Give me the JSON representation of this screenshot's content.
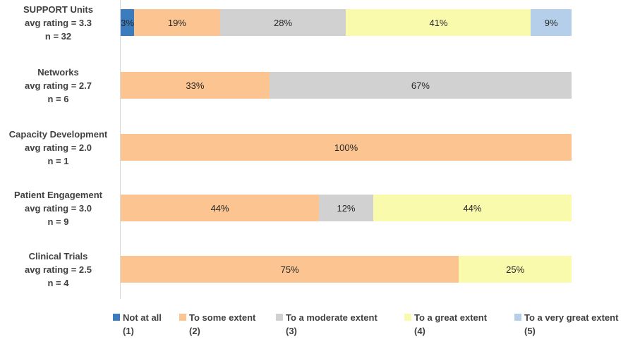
{
  "chart_data": {
    "type": "bar",
    "orientation": "horizontal",
    "stacked": true,
    "unit": "%",
    "xlim": [
      0,
      100
    ],
    "grid": false,
    "legend_position": "bottom",
    "series": [
      {
        "name": "Not at all",
        "scale": "(1)",
        "color": "#3A7CBE"
      },
      {
        "name": "To some extent",
        "scale": "(2)",
        "color": "#FBC491"
      },
      {
        "name": "To a moderate extent",
        "scale": "(3)",
        "color": "#D1D1D1"
      },
      {
        "name": "To a great extent",
        "scale": "(4)",
        "color": "#FAFAAD"
      },
      {
        "name": "To a very great extent",
        "scale": "(5)",
        "color": "#B5CFEA"
      }
    ],
    "rows": [
      {
        "label_lines": [
          "SUPPORT Units",
          "avg rating = 3.3",
          "n = 32"
        ],
        "segments": [
          {
            "series": 0,
            "value": 3,
            "label": "3%"
          },
          {
            "series": 1,
            "value": 19,
            "label": "19%"
          },
          {
            "series": 2,
            "value": 28,
            "label": "28%"
          },
          {
            "series": 3,
            "value": 41,
            "label": "41%"
          },
          {
            "series": 4,
            "value": 9,
            "label": "9%"
          }
        ]
      },
      {
        "label_lines": [
          "Networks",
          "avg rating = 2.7",
          "n = 6"
        ],
        "segments": [
          {
            "series": 1,
            "value": 33,
            "label": "33%"
          },
          {
            "series": 2,
            "value": 67,
            "label": "67%"
          }
        ]
      },
      {
        "label_lines": [
          "Capacity Development",
          "avg rating = 2.0",
          "n = 1"
        ],
        "segments": [
          {
            "series": 1,
            "value": 100,
            "label": "100%"
          }
        ]
      },
      {
        "label_lines": [
          "Patient Engagement",
          "avg rating = 3.0",
          "n = 9"
        ],
        "segments": [
          {
            "series": 1,
            "value": 44,
            "label": "44%"
          },
          {
            "series": 2,
            "value": 12,
            "label": "12%"
          },
          {
            "series": 3,
            "value": 44,
            "label": "44%"
          }
        ]
      },
      {
        "label_lines": [
          "Clinical Trials",
          "avg rating = 2.5",
          "n = 4"
        ],
        "segments": [
          {
            "series": 1,
            "value": 75,
            "label": "75%"
          },
          {
            "series": 3,
            "value": 25,
            "label": "25%"
          }
        ]
      }
    ],
    "colors": {
      "axis_line": "#D9D9D9",
      "category_text": "#404040",
      "value_text": "#262626",
      "legend_text": "#404040",
      "background": "#FFFFFF"
    }
  }
}
